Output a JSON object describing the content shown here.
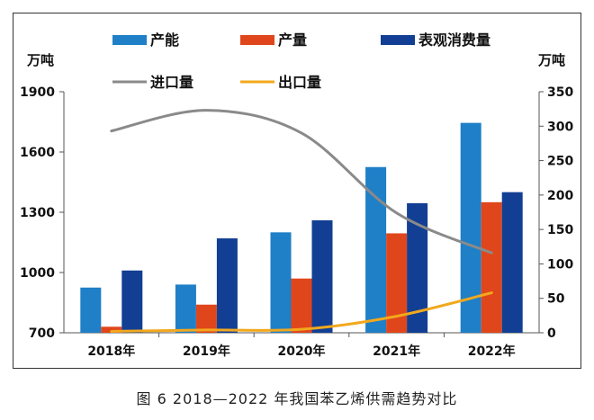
{
  "caption": "图 6  2018—2022 年我国苯乙烯供需趋势对比",
  "chart_data": {
    "type": "bar",
    "categories": [
      "2018年",
      "2019年",
      "2020年",
      "2021年",
      "2022年"
    ],
    "y_left": {
      "unit": "万吨",
      "range": [
        700,
        1900
      ],
      "ticks": [
        700,
        1000,
        1300,
        1600,
        1900
      ]
    },
    "y_right": {
      "unit": "万吨",
      "range": [
        0,
        350
      ],
      "ticks": [
        0,
        50,
        100,
        150,
        200,
        250,
        300,
        350
      ]
    },
    "bar_series": [
      {
        "name": "产能",
        "color": "#1f7fc7",
        "values": [
          925,
          940,
          1200,
          1525,
          1745
        ]
      },
      {
        "name": "产量",
        "color": "#e0461b",
        "values": [
          730,
          840,
          970,
          1195,
          1350
        ]
      },
      {
        "name": "表观消费量",
        "color": "#123f93",
        "values": [
          1010,
          1170,
          1260,
          1345,
          1400
        ]
      }
    ],
    "line_series": [
      {
        "name": "进口量",
        "color": "#8a8a8a",
        "axis": "right",
        "values": [
          293,
          323,
          290,
          174,
          116
        ]
      },
      {
        "name": "出口量",
        "color": "#f2a81d",
        "axis": "right",
        "values": [
          2,
          4,
          5,
          24,
          58
        ]
      }
    ],
    "legend_position": "top",
    "grid": false
  }
}
